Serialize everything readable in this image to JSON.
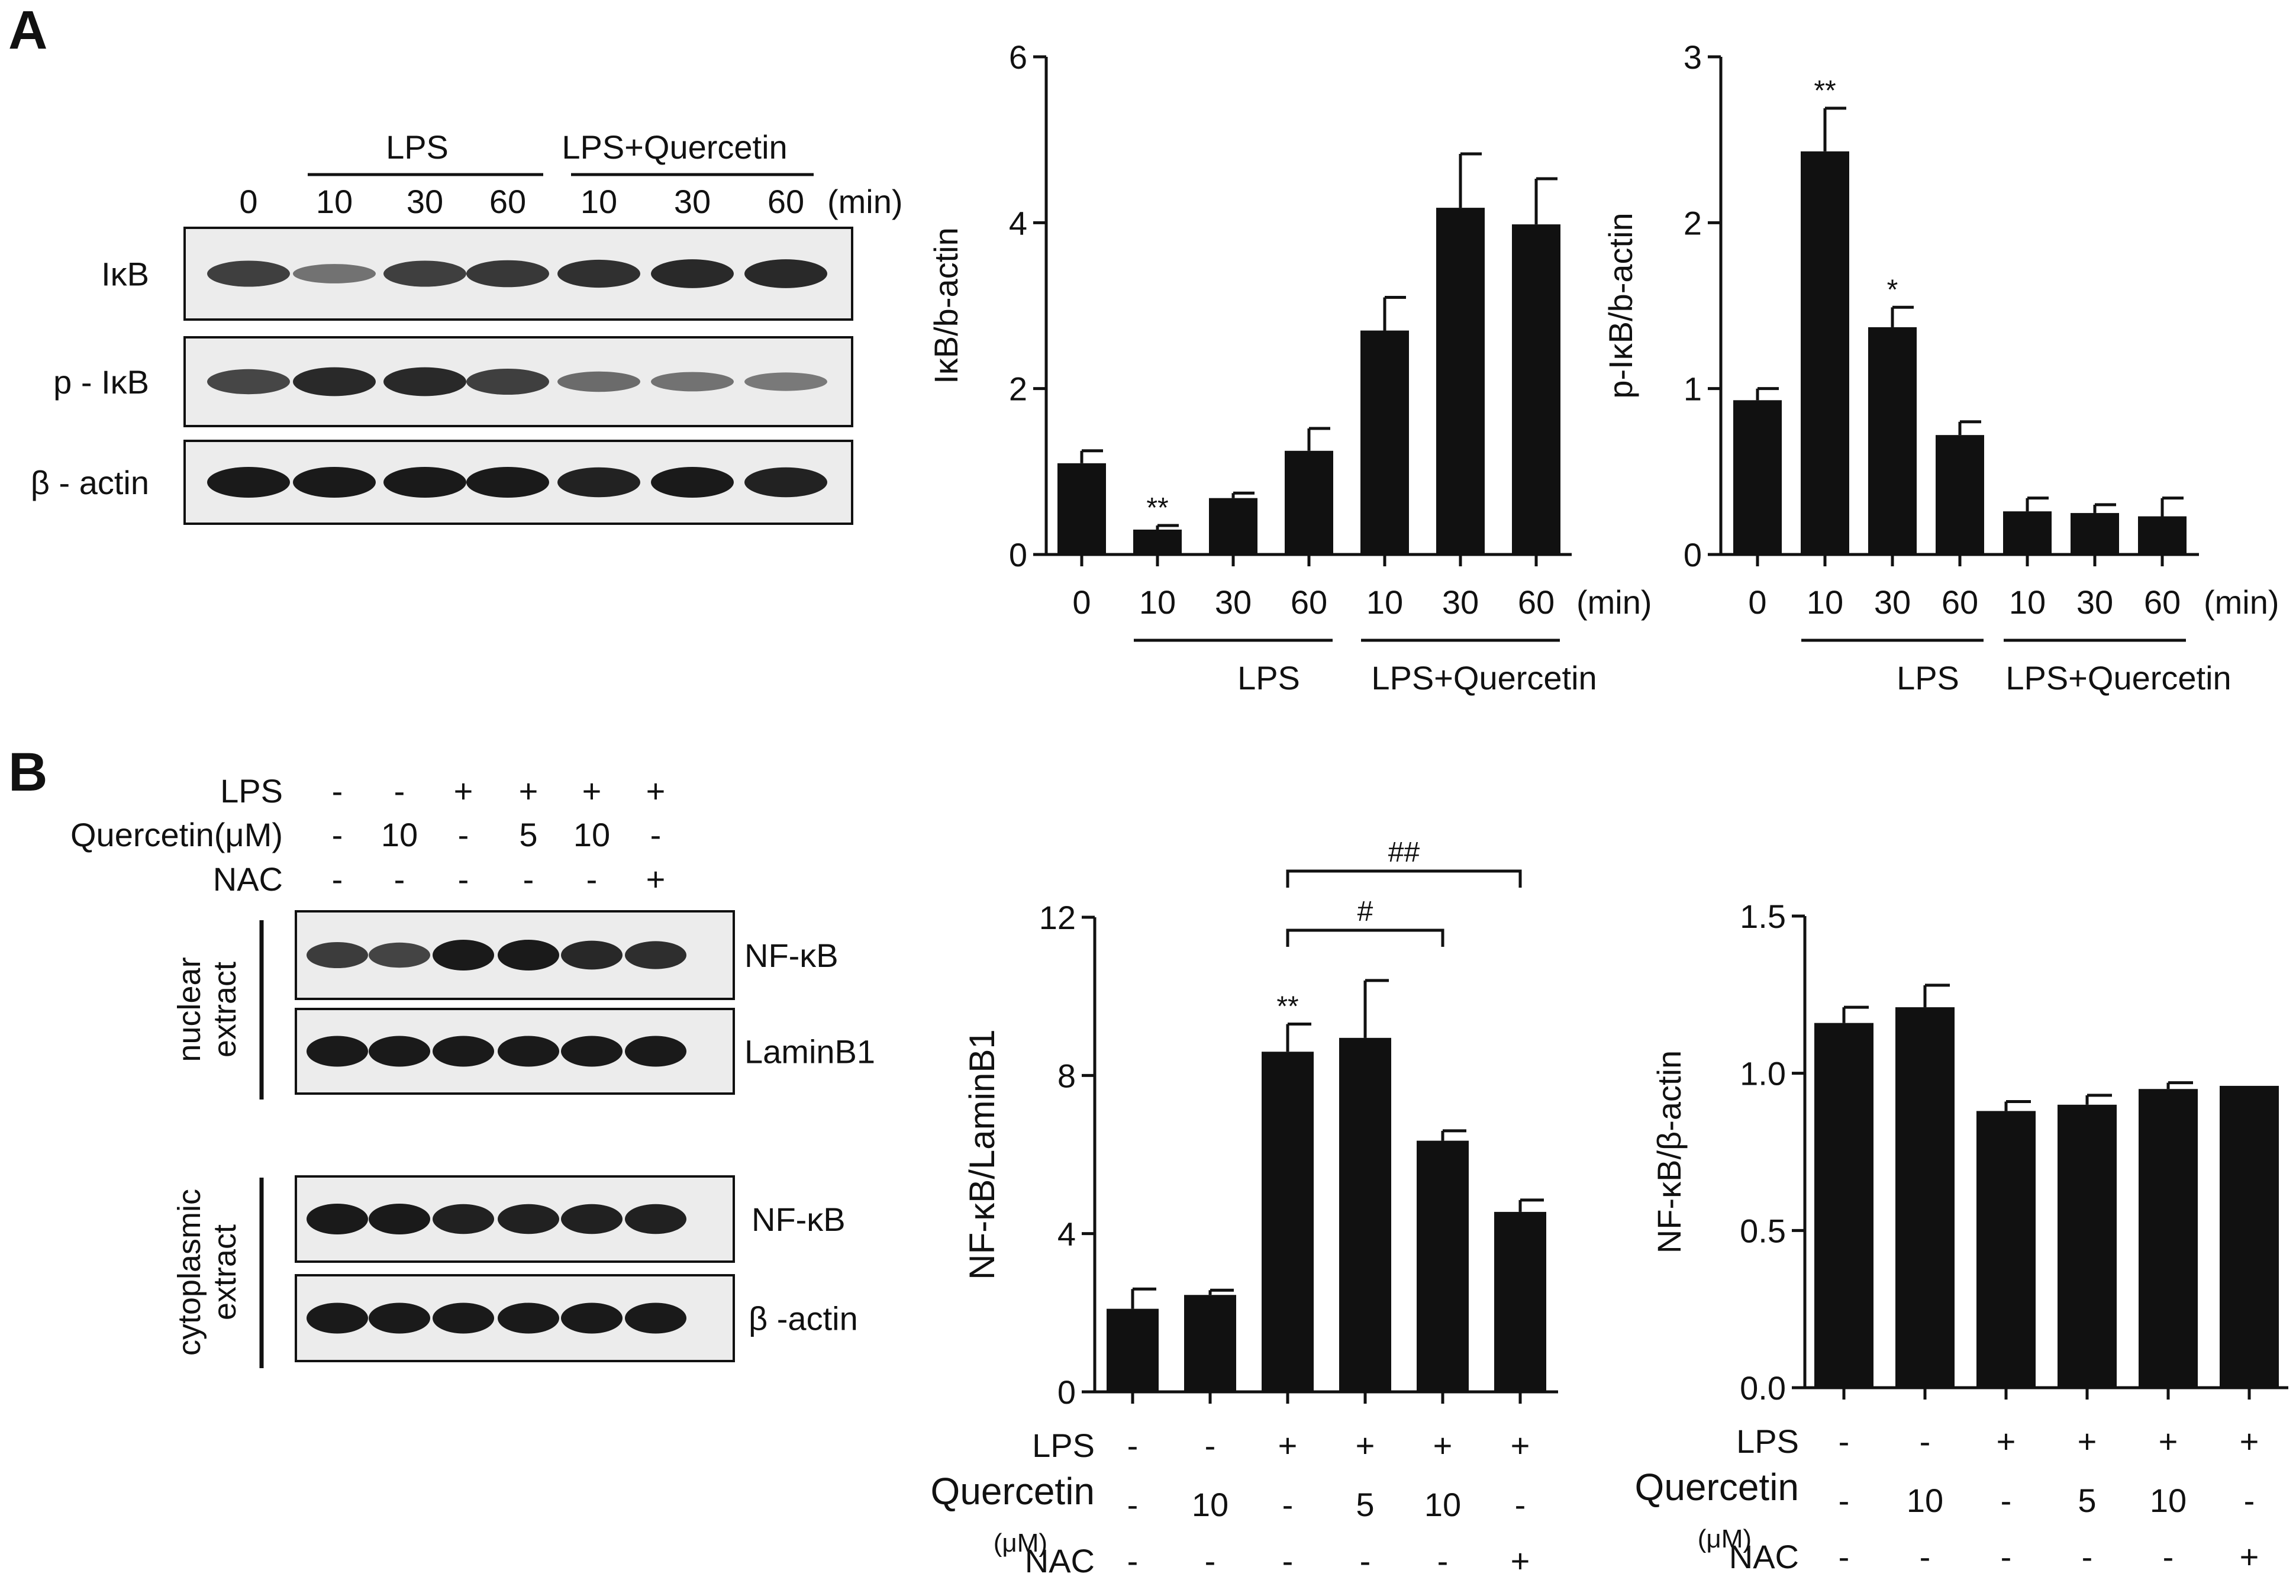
{
  "panel_labels": {
    "a": "A",
    "b": "B"
  },
  "colors": {
    "bar": "#111111",
    "ink": "#111111",
    "blot_bg": "#ececec",
    "band": "#1a1a1a"
  },
  "blotA": {
    "lanes": [
      "0",
      "10",
      "30",
      "60",
      "10",
      "30",
      "60"
    ],
    "unit": "(min)",
    "group1": "LPS",
    "group2": "LPS+Quercetin",
    "rows": [
      {
        "label": "IκB",
        "intensity": [
          0.75,
          0.4,
          0.75,
          0.8,
          0.85,
          0.9,
          0.9
        ]
      },
      {
        "label": "p - IκB",
        "intensity": [
          0.7,
          0.9,
          0.9,
          0.75,
          0.45,
          0.4,
          0.35
        ]
      },
      {
        "label": "β - actin",
        "intensity": [
          1,
          1,
          1,
          1,
          0.95,
          1,
          0.95
        ]
      }
    ]
  },
  "blotB": {
    "rows": [
      {
        "label": "LPS",
        "values": [
          "-",
          "-",
          "+",
          "+",
          "+",
          "+"
        ]
      },
      {
        "label": "Quercetin(μM)",
        "values": [
          "-",
          "10",
          "-",
          "5",
          "10",
          "-"
        ]
      },
      {
        "label": "NAC",
        "values": [
          "-",
          "-",
          "-",
          "-",
          "-",
          "+"
        ]
      }
    ],
    "nuclear_label": [
      "nuclear",
      "extract"
    ],
    "cyto_label": [
      "cytoplasmic",
      "extract"
    ],
    "blots": [
      {
        "label": "NF-κB",
        "intensity": [
          0.75,
          0.7,
          1,
          1,
          0.9,
          0.85
        ]
      },
      {
        "label": "LaminB1",
        "intensity": [
          1,
          1,
          1,
          1,
          1,
          1
        ]
      },
      {
        "label": "NF-κB",
        "intensity": [
          1,
          1,
          0.95,
          0.95,
          0.95,
          0.95
        ]
      },
      {
        "label": "β -actin",
        "intensity": [
          1,
          1,
          1,
          1,
          1,
          1
        ]
      }
    ]
  },
  "chart_data": [
    {
      "type": "bar",
      "title": "",
      "xlabel": "",
      "ylabel": "IκB/b-actin",
      "ylim": [
        0,
        6
      ],
      "yticks": [
        "0",
        "2",
        "4",
        "6"
      ],
      "categories": [
        "0",
        "10",
        "30",
        "60",
        "10",
        "30",
        "60"
      ],
      "x_unit": "(min)",
      "values": [
        1.1,
        0.3,
        0.68,
        1.25,
        2.7,
        4.18,
        3.98
      ],
      "errors": [
        0.15,
        0.05,
        0.06,
        0.27,
        0.4,
        0.65,
        0.55
      ],
      "annotations": [
        "",
        "**",
        "",
        "",
        "",
        "",
        ""
      ],
      "groups": [
        {
          "label": "LPS",
          "from": 1,
          "to": 3
        },
        {
          "label": "LPS+Quercetin",
          "from": 4,
          "to": 6
        }
      ]
    },
    {
      "type": "bar",
      "title": "",
      "xlabel": "",
      "ylabel": "p-IκB/b-actin",
      "ylim": [
        0,
        3
      ],
      "yticks": [
        "0",
        "1",
        "2",
        "3"
      ],
      "categories": [
        "0",
        "10",
        "30",
        "60",
        "10",
        "30",
        "60"
      ],
      "x_unit": "(min)",
      "values": [
        0.93,
        2.43,
        1.37,
        0.72,
        0.26,
        0.25,
        0.23
      ],
      "errors": [
        0.07,
        0.26,
        0.12,
        0.08,
        0.08,
        0.05,
        0.11
      ],
      "annotations": [
        "",
        "**",
        "*",
        "",
        "",
        "",
        ""
      ],
      "groups": [
        {
          "label": "LPS",
          "from": 1,
          "to": 3
        },
        {
          "label": "LPS+Quercetin",
          "from": 4,
          "to": 6
        }
      ]
    },
    {
      "type": "bar",
      "title": "",
      "xlabel": "",
      "ylabel": "NF-κB/LaminB1",
      "ylim": [
        0,
        12
      ],
      "yticks": [
        "0",
        "4",
        "8",
        "12"
      ],
      "categories": [
        "1",
        "2",
        "3",
        "4",
        "5",
        "6"
      ],
      "values": [
        2.1,
        2.45,
        8.6,
        8.95,
        6.35,
        4.55
      ],
      "errors": [
        0.5,
        0.12,
        0.7,
        1.45,
        0.25,
        0.3
      ],
      "annotations": [
        "",
        "",
        "**",
        "",
        "",
        ""
      ],
      "brackets": [
        {
          "from": 2,
          "to": 4,
          "label": "#"
        },
        {
          "from": 2,
          "to": 5,
          "label": "##"
        }
      ],
      "condition_rows": [
        {
          "label": "LPS",
          "values": [
            "-",
            "-",
            "+",
            "+",
            "+",
            "+"
          ]
        },
        {
          "label": "Quercetin",
          "sublabel": "(μM)",
          "values": [
            "-",
            "10",
            "-",
            "5",
            "10",
            "-"
          ]
        },
        {
          "label": "NAC",
          "values": [
            "-",
            "-",
            "-",
            "-",
            "-",
            "+"
          ]
        }
      ]
    },
    {
      "type": "bar",
      "title": "",
      "xlabel": "",
      "ylabel": "NF-κB/β-actin",
      "ylim": [
        0,
        1.5
      ],
      "yticks": [
        "0.0",
        "0.5",
        "1.0",
        "1.5"
      ],
      "categories": [
        "1",
        "2",
        "3",
        "4",
        "5",
        "6"
      ],
      "values": [
        1.16,
        1.21,
        0.88,
        0.9,
        0.95,
        0.96
      ],
      "errors": [
        0.05,
        0.07,
        0.03,
        0.03,
        0.02,
        0.0
      ],
      "annotations": [
        "",
        "",
        "",
        "",
        "",
        ""
      ],
      "condition_rows": [
        {
          "label": "LPS",
          "values": [
            "-",
            "-",
            "+",
            "+",
            "+",
            "+"
          ]
        },
        {
          "label": "Quercetin",
          "sublabel": "(μM)",
          "values": [
            "-",
            "10",
            "-",
            "5",
            "10",
            "-"
          ]
        },
        {
          "label": "NAC",
          "values": [
            "-",
            "-",
            "-",
            "-",
            "-",
            "+"
          ]
        }
      ]
    }
  ]
}
